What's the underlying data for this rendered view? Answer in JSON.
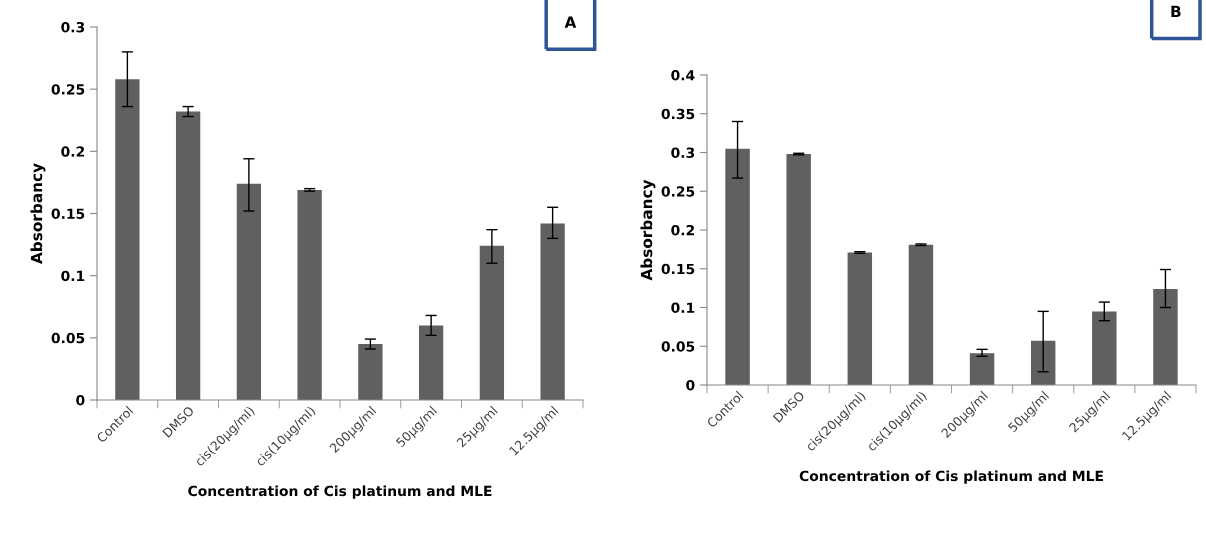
{
  "chart_data": [
    {
      "type": "bar",
      "categories": [
        "Control",
        "DMSO",
        "cis(20µg/ml)",
        "cis(10µg/ml)",
        "200µg/ml",
        "50µg/ml",
        "25µg/ml",
        "12.5µg/ml"
      ],
      "values": [
        0.258,
        0.232,
        0.174,
        0.169,
        0.045,
        0.06,
        0.124,
        0.142
      ],
      "errors": [
        0.022,
        0.004,
        [
          0.152,
          0.194
        ],
        0.001,
        0.004,
        0.008,
        [
          0.11,
          0.137
        ],
        [
          0.13,
          0.155
        ]
      ],
      "color": "#606060",
      "ylim": [
        0,
        0.3
      ],
      "yticks": [
        {
          "value": 0,
          "label": "0"
        },
        {
          "value": 0.05,
          "label": "0.05"
        },
        {
          "value": 0.1,
          "label": "0.1"
        },
        {
          "value": 0.15,
          "label": "0.15"
        },
        {
          "value": 0.2,
          "label": "0.2"
        },
        {
          "value": 0.25,
          "label": "0.25"
        },
        {
          "value": 0.3,
          "label": "0.3"
        }
      ],
      "ylabel": "Absorbancy",
      "xlabel": "Concentration of Cis platinum and MLE",
      "annotations": [
        "A"
      ],
      "grid": false
    },
    {
      "type": "bar",
      "categories": [
        "Control",
        "DMSO",
        "cis(20µg/ml)",
        "cis(10µg/ml)",
        "200µg/ml",
        "50µg/ml",
        "25µg/ml",
        "12.5µg/ml"
      ],
      "values": [
        0.305,
        0.298,
        0.171,
        0.181,
        0.041,
        0.057,
        0.095,
        0.124
      ],
      "errors": [
        [
          0.267,
          0.34
        ],
        0.001,
        0.001,
        0.001,
        [
          0.037,
          0.046
        ],
        [
          0.017,
          0.095
        ],
        [
          0.083,
          0.107
        ],
        [
          0.1,
          0.149
        ]
      ],
      "color": "#606060",
      "ylim": [
        0,
        0.4
      ],
      "yticks": [
        {
          "value": 0,
          "label": "0"
        },
        {
          "value": 0.05,
          "label": "0.05"
        },
        {
          "value": 0.1,
          "label": "0.1"
        },
        {
          "value": 0.15,
          "label": "0.15"
        },
        {
          "value": 0.2,
          "label": "0.2"
        },
        {
          "value": 0.25,
          "label": "0.25"
        },
        {
          "value": 0.3,
          "label": "0.3"
        },
        {
          "value": 0.35,
          "label": "0.35"
        },
        {
          "value": 0.4,
          "label": "0.4"
        }
      ],
      "ylabel": "Absorbancy",
      "xlabel": "Concentration of Cis platinum and MLE",
      "annotations": [
        "B"
      ],
      "grid": false
    }
  ]
}
